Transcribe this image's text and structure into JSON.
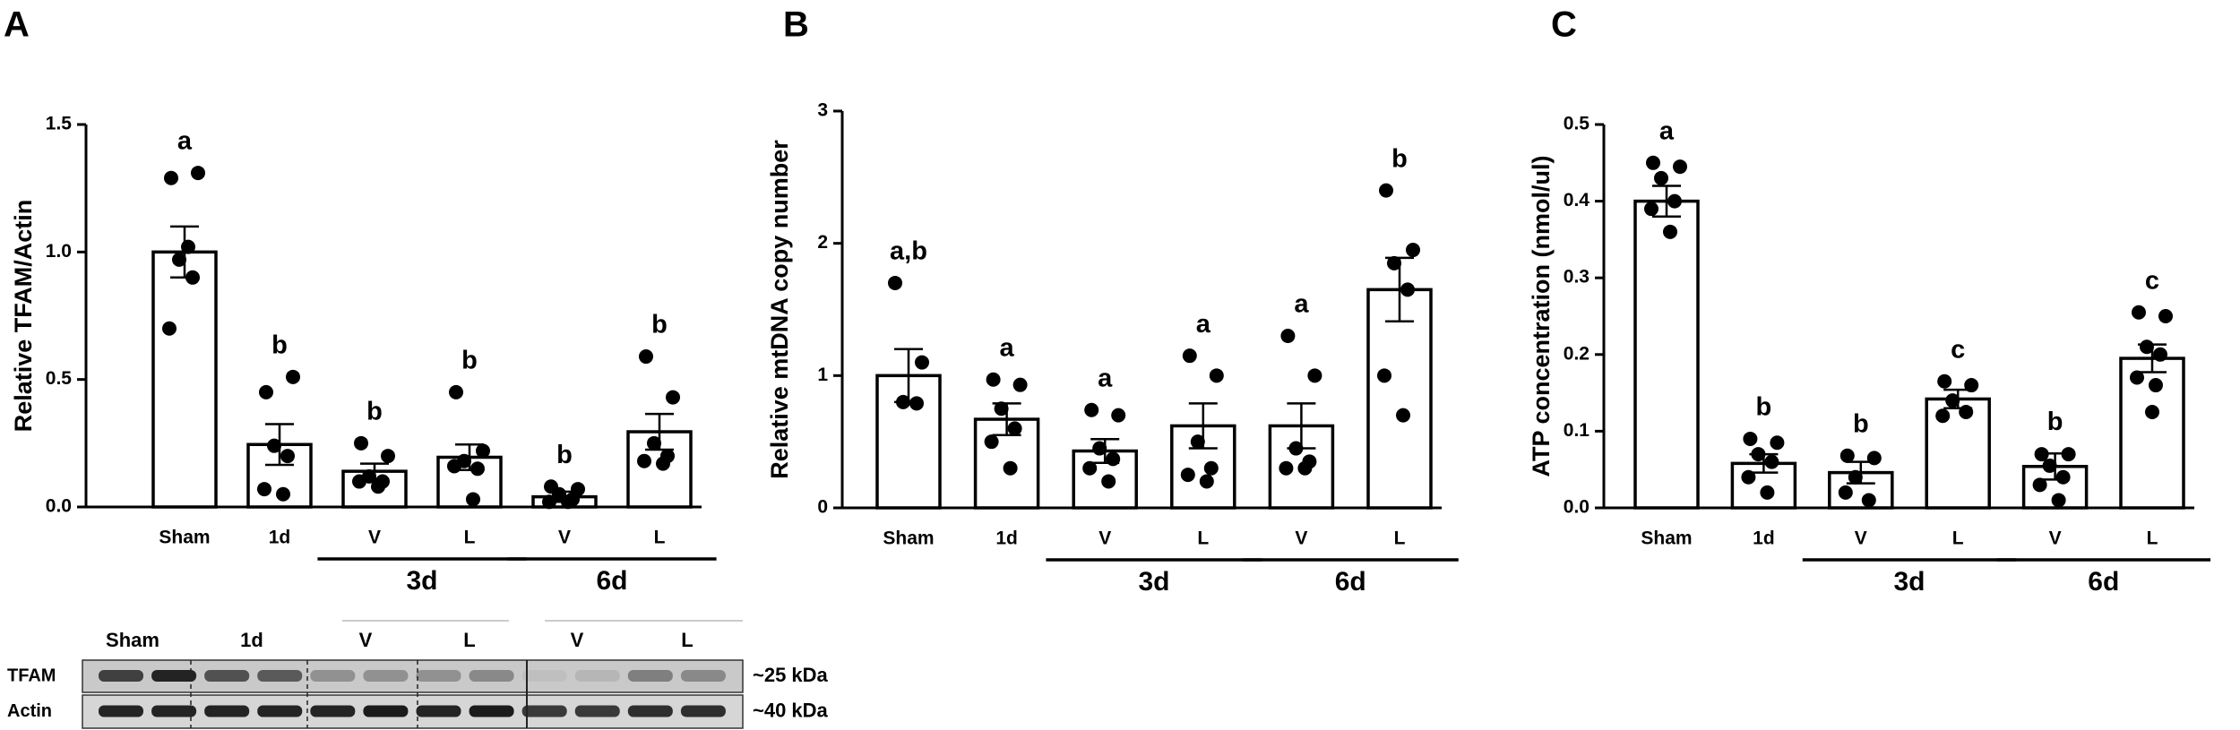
{
  "chart_data": [
    {
      "type": "bar",
      "panel_label": "A",
      "y_label": "Relative TFAM/Actin",
      "categories": [
        "Sham",
        "1d",
        "V",
        "L",
        "V",
        "L"
      ],
      "values": [
        1.0,
        0.245,
        0.14,
        0.195,
        0.04,
        0.295
      ],
      "errors": [
        0.1,
        0.08,
        0.03,
        0.05,
        0.02,
        0.07
      ],
      "points": [
        [
          1.29,
          1.31,
          0.97,
          0.9,
          0.7,
          1.02
        ],
        [
          0.45,
          0.51,
          0.24,
          0.2,
          0.07,
          0.05
        ],
        [
          0.25,
          0.2,
          0.12,
          0.1,
          0.1,
          0.08
        ],
        [
          0.45,
          0.22,
          0.18,
          0.15,
          0.16,
          0.03
        ],
        [
          0.08,
          0.07,
          0.05,
          0.03,
          0.02,
          0.02
        ],
        [
          0.59,
          0.43,
          0.25,
          0.2,
          0.18,
          0.17
        ]
      ],
      "letters": [
        "a",
        "b",
        "b",
        "b",
        "b",
        "b"
      ],
      "groups": [
        "3d",
        "6d"
      ],
      "ylim": [
        0,
        1.5
      ],
      "yticks": [
        {
          "value": 0,
          "label": "0.0"
        },
        0.5,
        {
          "value": 1,
          "label": "1.0"
        },
        1.5
      ]
    },
    {
      "type": "bar",
      "panel_label": "B",
      "y_label": "Relative mtDNA copy number",
      "categories": [
        "Sham",
        "1d",
        "V",
        "L",
        "V",
        "L"
      ],
      "values": [
        1.0,
        0.67,
        0.43,
        0.62,
        0.62,
        1.65
      ],
      "errors": [
        0.2,
        0.12,
        0.09,
        0.17,
        0.17,
        0.24
      ],
      "points": [
        [
          1.7,
          1.1,
          0.8,
          0.79
        ],
        [
          0.97,
          0.93,
          0.75,
          0.6,
          0.5,
          0.3
        ],
        [
          0.74,
          0.7,
          0.45,
          0.37,
          0.3,
          0.2
        ],
        [
          1.15,
          1.0,
          0.5,
          0.3,
          0.25,
          0.2
        ],
        [
          1.3,
          1.0,
          0.45,
          0.35,
          0.3,
          0.3
        ],
        [
          2.4,
          1.95,
          1.85,
          1.65,
          1.0,
          0.7
        ]
      ],
      "letters": [
        "a,b",
        "a",
        "a",
        "a",
        "a",
        "b"
      ],
      "groups": [
        "3d",
        "6d"
      ],
      "ylim": [
        0,
        3
      ],
      "yticks": [
        0,
        1,
        2,
        3
      ]
    },
    {
      "type": "bar",
      "panel_label": "C",
      "y_label": "ATP concentration (nmol/ul)",
      "categories": [
        "Sham",
        "1d",
        "V",
        "L",
        "V",
        "L"
      ],
      "values": [
        0.4,
        0.058,
        0.046,
        0.142,
        0.054,
        0.195
      ],
      "errors": [
        0.02,
        0.012,
        0.014,
        0.012,
        0.017,
        0.018
      ],
      "points": [
        [
          0.45,
          0.445,
          0.43,
          0.4,
          0.39,
          0.36
        ],
        [
          0.09,
          0.085,
          0.07,
          0.06,
          0.04,
          0.02
        ],
        [
          0.068,
          0.065,
          0.04,
          0.01,
          0.02
        ],
        [
          0.165,
          0.16,
          0.14,
          0.125,
          0.12
        ],
        [
          0.07,
          0.07,
          0.055,
          0.04,
          0.03,
          0.01
        ],
        [
          0.255,
          0.25,
          0.21,
          0.2,
          0.17,
          0.16,
          0.125
        ]
      ],
      "letters": [
        "a",
        "b",
        "b",
        "c",
        "b",
        "c"
      ],
      "groups": [
        "3d",
        "6d"
      ],
      "ylim": [
        0,
        0.5
      ],
      "yticks": [
        {
          "value": 0,
          "label": "0.0"
        },
        0.1,
        0.2,
        0.3,
        0.4,
        0.5
      ]
    }
  ],
  "blot": {
    "lanes": [
      "Sham",
      "1d",
      "V",
      "L",
      "V",
      "L"
    ],
    "rows": [
      "TFAM",
      "Actin"
    ],
    "sizes": [
      "~25 kDa",
      "~40 kDa"
    ]
  }
}
